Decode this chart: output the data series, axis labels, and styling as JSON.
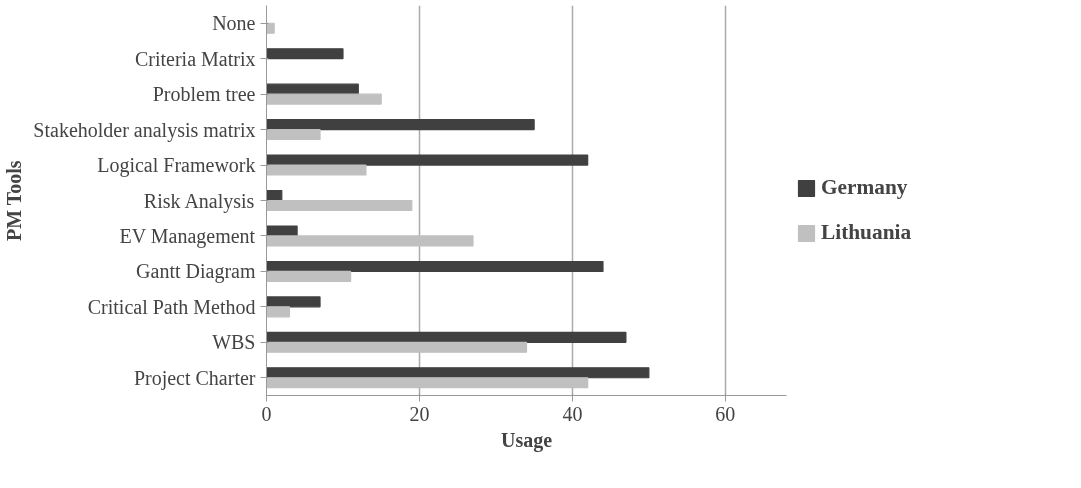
{
  "chart_data": {
    "type": "bar",
    "orientation": "horizontal",
    "xlabel": "Usage",
    "ylabel": "PM Tools",
    "categories": [
      "None",
      "Criteria Matrix",
      "Problem tree",
      "Stakeholder analysis matrix",
      "Logical Framework",
      "Risk Analysis",
      "EV Management",
      "Gantt Diagram",
      "Critical Path Method",
      "WBS",
      "Project Charter"
    ],
    "series": [
      {
        "name": "Germany",
        "color": "#404040",
        "values": [
          null,
          10,
          12,
          35,
          42,
          2,
          4,
          44,
          7,
          47,
          50
        ]
      },
      {
        "name": "Lithuania",
        "color": "#c0c0c0",
        "values": [
          1,
          null,
          15,
          7,
          13,
          19,
          27,
          11,
          3,
          34,
          42
        ]
      }
    ],
    "xlim": [
      0,
      68
    ],
    "xticks": [
      0,
      20,
      40,
      60
    ],
    "grid": "x",
    "legend": "right"
  }
}
